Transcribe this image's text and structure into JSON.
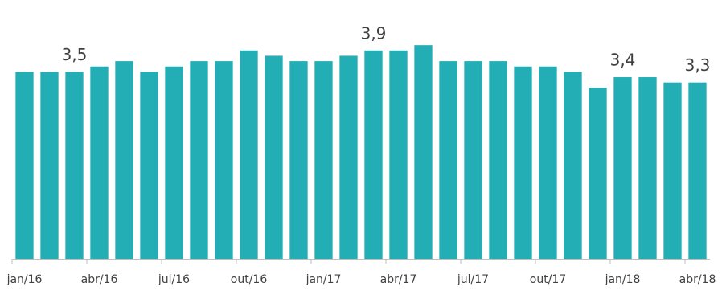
{
  "chart_data": {
    "type": "bar",
    "categories": [
      "jan/16",
      null,
      null,
      "abr/16",
      null,
      null,
      "jul/16",
      null,
      null,
      "out/16",
      null,
      null,
      "jan/17",
      null,
      null,
      "abr/17",
      null,
      null,
      "jul/17",
      null,
      null,
      "out/17",
      null,
      null,
      "jan/18",
      null,
      null,
      "abr/18"
    ],
    "values": [
      3.5,
      3.5,
      3.5,
      3.6,
      3.7,
      3.5,
      3.6,
      3.7,
      3.7,
      3.9,
      3.8,
      3.7,
      3.7,
      3.8,
      3.9,
      3.9,
      4.0,
      3.7,
      3.7,
      3.7,
      3.6,
      3.6,
      3.5,
      3.2,
      3.4,
      3.4,
      3.3,
      3.3
    ],
    "value_labels": [
      null,
      null,
      "3,5",
      null,
      null,
      null,
      null,
      null,
      null,
      null,
      null,
      null,
      null,
      null,
      "3,9",
      null,
      null,
      null,
      null,
      null,
      null,
      null,
      null,
      null,
      "3,4",
      null,
      null,
      "3,3"
    ],
    "color": "#23adb4",
    "ylim": [
      0,
      4.8
    ]
  }
}
